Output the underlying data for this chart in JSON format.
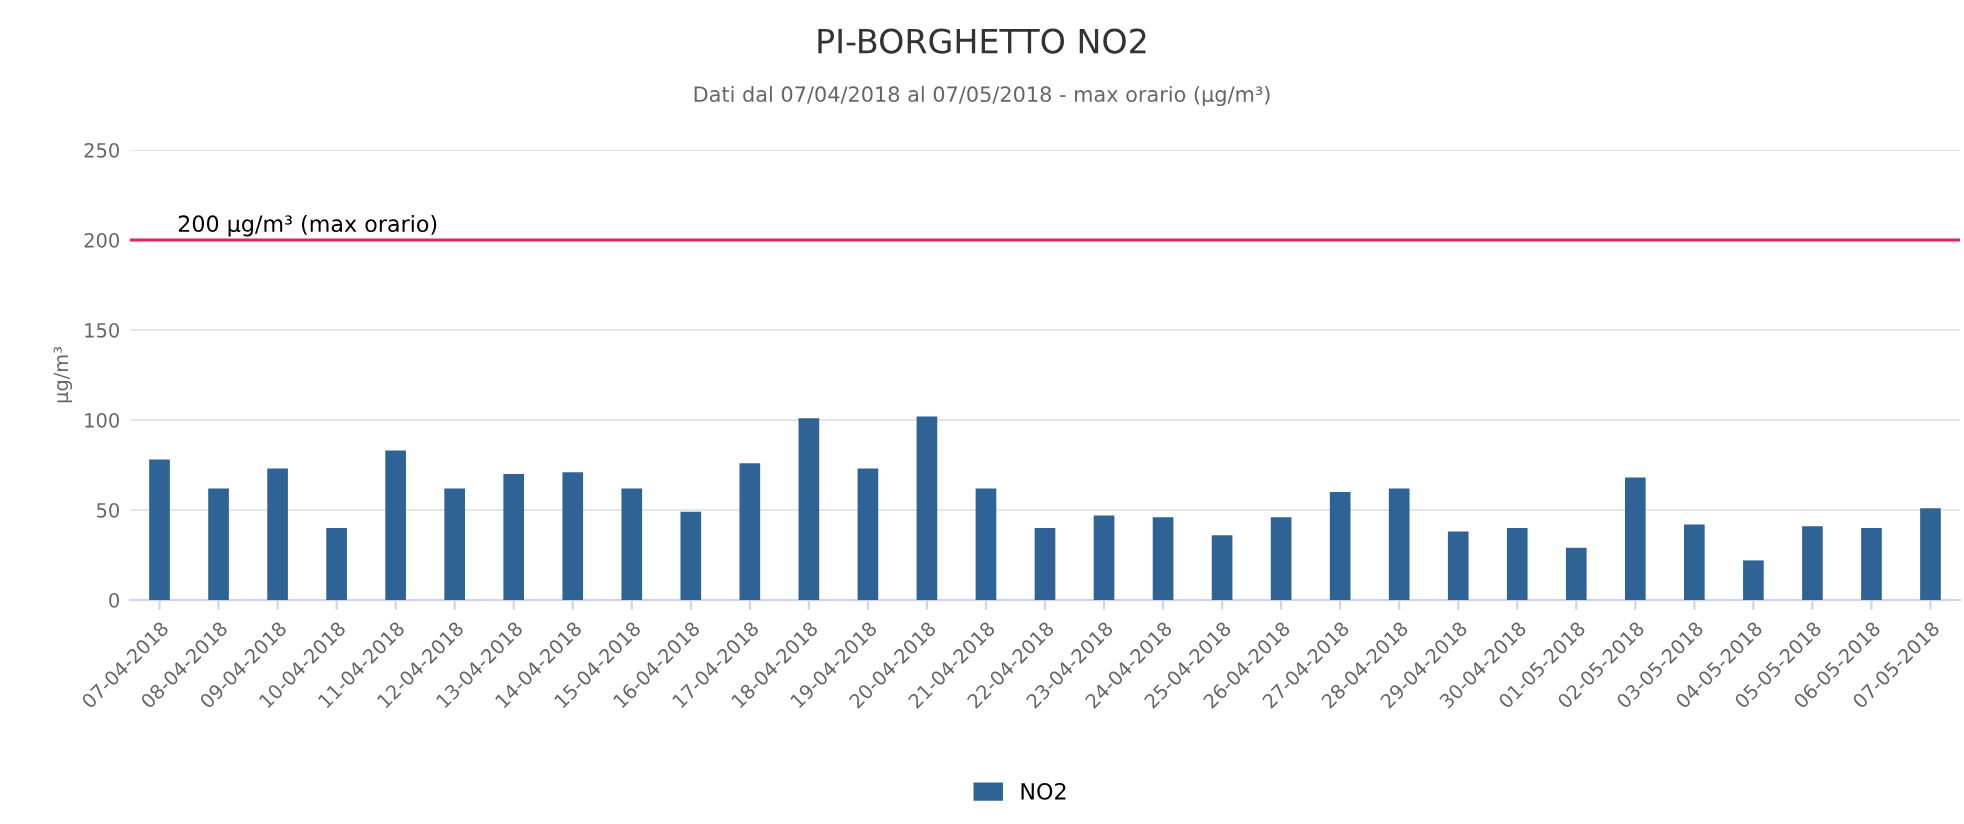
{
  "chart_data": {
    "type": "bar",
    "title": "PI-BORGHETTO NO2",
    "subtitle": "Dati dal 07/04/2018 al 07/05/2018 - max orario (µg/m³)",
    "ylabel": "µg/m³",
    "categories": [
      "07-04-2018",
      "08-04-2018",
      "09-04-2018",
      "10-04-2018",
      "11-04-2018",
      "12-04-2018",
      "13-04-2018",
      "14-04-2018",
      "15-04-2018",
      "16-04-2018",
      "17-04-2018",
      "18-04-2018",
      "19-04-2018",
      "20-04-2018",
      "21-04-2018",
      "22-04-2018",
      "23-04-2018",
      "24-04-2018",
      "25-04-2018",
      "26-04-2018",
      "27-04-2018",
      "28-04-2018",
      "29-04-2018",
      "30-04-2018",
      "01-05-2018",
      "02-05-2018",
      "03-05-2018",
      "04-05-2018",
      "05-05-2018",
      "06-05-2018",
      "07-05-2018"
    ],
    "series": [
      {
        "name": "NO2",
        "color": "#2f6396",
        "values": [
          78,
          62,
          73,
          40,
          83,
          62,
          70,
          71,
          62,
          49,
          76,
          101,
          73,
          102,
          62,
          40,
          47,
          46,
          36,
          46,
          60,
          62,
          38,
          40,
          29,
          68,
          42,
          22,
          41,
          40,
          51
        ]
      }
    ],
    "ylim": [
      0,
      250
    ],
    "yticks": [
      0,
      50,
      100,
      150,
      200,
      250
    ],
    "grid": "y",
    "legend": "bottom",
    "ref_lines": [
      {
        "axis": "y",
        "value": 200,
        "label": "200 µg/m³ (max orario)",
        "color": "#e0245e"
      }
    ]
  }
}
